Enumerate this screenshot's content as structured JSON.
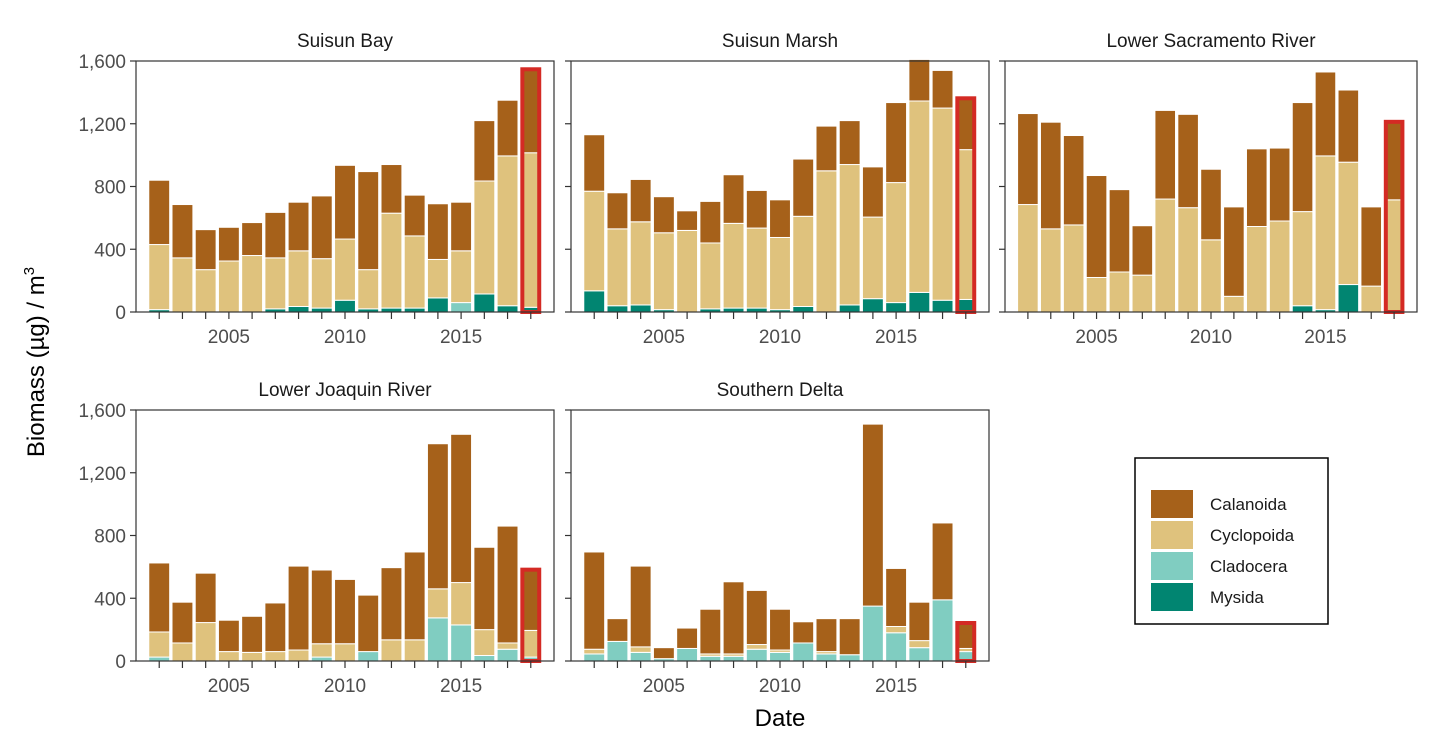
{
  "chart_data": {
    "type": "bar",
    "stacked": true,
    "xlabel": "Date",
    "ylabel": "Biomass (µg) / m",
    "ylabel_superscript": "3",
    "ylim": [
      0,
      1600
    ],
    "yticks": [
      0,
      400,
      800,
      1200,
      1600
    ],
    "ytick_labels": [
      "0",
      "400",
      "800",
      "1,200",
      "1,600"
    ],
    "xlim": [
      2001,
      2019
    ],
    "xticks": [
      2005,
      2010,
      2015
    ],
    "xtick_labels": [
      "2005",
      "2010",
      "2015"
    ],
    "x": [
      2002,
      2003,
      2004,
      2005,
      2006,
      2007,
      2008,
      2009,
      2010,
      2011,
      2012,
      2013,
      2014,
      2015,
      2016,
      2017,
      2018
    ],
    "highlight_year": 2018,
    "grid": false,
    "legend_position": "bottom-right",
    "colors": {
      "Calanoida": "#a6611a",
      "Cyclopoida": "#dfc27d",
      "Cladocera": "#80cdc1",
      "Mysida": "#018571",
      "highlight": "#d42a24",
      "axis": "#333333"
    },
    "legend": [
      "Calanoida",
      "Cyclopoida",
      "Cladocera",
      "Mysida"
    ],
    "panels": [
      {
        "title": "Suisun Bay",
        "series": [
          {
            "name": "Mysida",
            "values": [
              15,
              0,
              0,
              0,
              0,
              20,
              35,
              25,
              75,
              20,
              25,
              25,
              90,
              0,
              115,
              40,
              30
            ]
          },
          {
            "name": "Cladocera",
            "values": [
              0,
              0,
              0,
              0,
              0,
              0,
              0,
              0,
              0,
              0,
              0,
              0,
              0,
              60,
              0,
              0,
              0
            ]
          },
          {
            "name": "Cyclopoida",
            "values": [
              415,
              345,
              270,
              325,
              360,
              325,
              355,
              315,
              390,
              250,
              605,
              460,
              245,
              330,
              720,
              955,
              985
            ]
          },
          {
            "name": "Calanoida",
            "values": [
              410,
              340,
              255,
              215,
              210,
              290,
              310,
              400,
              470,
              625,
              310,
              260,
              355,
              310,
              385,
              355,
              545
            ]
          }
        ]
      },
      {
        "title": "Suisun Marsh",
        "series": [
          {
            "name": "Mysida",
            "values": [
              135,
              40,
              45,
              15,
              0,
              20,
              25,
              25,
              15,
              35,
              0,
              45,
              85,
              60,
              125,
              75,
              80
            ]
          },
          {
            "name": "Cladocera",
            "values": [
              0,
              0,
              0,
              0,
              0,
              0,
              0,
              0,
              0,
              0,
              0,
              0,
              0,
              0,
              0,
              0,
              0
            ]
          },
          {
            "name": "Cyclopoida",
            "values": [
              635,
              490,
              530,
              490,
              520,
              420,
              540,
              510,
              460,
              575,
              900,
              895,
              520,
              765,
              1220,
              1225,
              955
            ]
          },
          {
            "name": "Calanoida",
            "values": [
              360,
              230,
              270,
              230,
              125,
              265,
              310,
              240,
              240,
              365,
              285,
              280,
              320,
              510,
              265,
              240,
              340
            ]
          }
        ]
      },
      {
        "title": "Lower Sacramento River",
        "series": [
          {
            "name": "Mysida",
            "values": [
              0,
              0,
              0,
              0,
              0,
              0,
              0,
              0,
              0,
              0,
              0,
              0,
              40,
              15,
              175,
              0,
              0
            ]
          },
          {
            "name": "Cladocera",
            "values": [
              0,
              0,
              0,
              0,
              0,
              0,
              0,
              0,
              0,
              0,
              0,
              0,
              0,
              0,
              0,
              0,
              0
            ]
          },
          {
            "name": "Cyclopoida",
            "values": [
              685,
              530,
              555,
              220,
              255,
              235,
              720,
              665,
              460,
              100,
              545,
              580,
              600,
              980,
              780,
              165,
              715
            ]
          },
          {
            "name": "Calanoida",
            "values": [
              580,
              680,
              570,
              650,
              525,
              315,
              565,
              595,
              450,
              570,
              495,
              465,
              695,
              535,
              460,
              505,
              510
            ]
          }
        ]
      },
      {
        "title": "Lower Joaquin River",
        "series": [
          {
            "name": "Mysida",
            "values": [
              0,
              0,
              0,
              0,
              0,
              0,
              0,
              0,
              0,
              0,
              0,
              0,
              0,
              0,
              0,
              0,
              0
            ]
          },
          {
            "name": "Cladocera",
            "values": [
              25,
              0,
              0,
              0,
              0,
              0,
              0,
              25,
              0,
              60,
              0,
              0,
              275,
              230,
              35,
              75,
              25
            ]
          },
          {
            "name": "Cyclopoida",
            "values": [
              160,
              115,
              245,
              60,
              55,
              60,
              70,
              85,
              110,
              0,
              135,
              135,
              185,
              270,
              165,
              40,
              170
            ]
          },
          {
            "name": "Calanoida",
            "values": [
              440,
              260,
              315,
              200,
              230,
              310,
              535,
              470,
              410,
              360,
              460,
              560,
              925,
              945,
              525,
              745,
              400
            ]
          }
        ]
      },
      {
        "title": "Southern Delta",
        "series": [
          {
            "name": "Mysida",
            "values": [
              0,
              0,
              0,
              0,
              0,
              0,
              0,
              0,
              0,
              0,
              0,
              0,
              0,
              0,
              0,
              0,
              0
            ]
          },
          {
            "name": "Cladocera",
            "values": [
              45,
              125,
              55,
              15,
              80,
              30,
              30,
              75,
              55,
              115,
              45,
              40,
              350,
              180,
              85,
              390,
              60
            ]
          },
          {
            "name": "Cyclopoida",
            "values": [
              30,
              0,
              35,
              0,
              0,
              15,
              15,
              30,
              15,
              0,
              15,
              0,
              0,
              40,
              45,
              0,
              20
            ]
          },
          {
            "name": "Calanoida",
            "values": [
              620,
              145,
              515,
              70,
              130,
              285,
              460,
              345,
              260,
              135,
              210,
              230,
              1160,
              370,
              245,
              490,
              175
            ]
          }
        ]
      }
    ]
  }
}
